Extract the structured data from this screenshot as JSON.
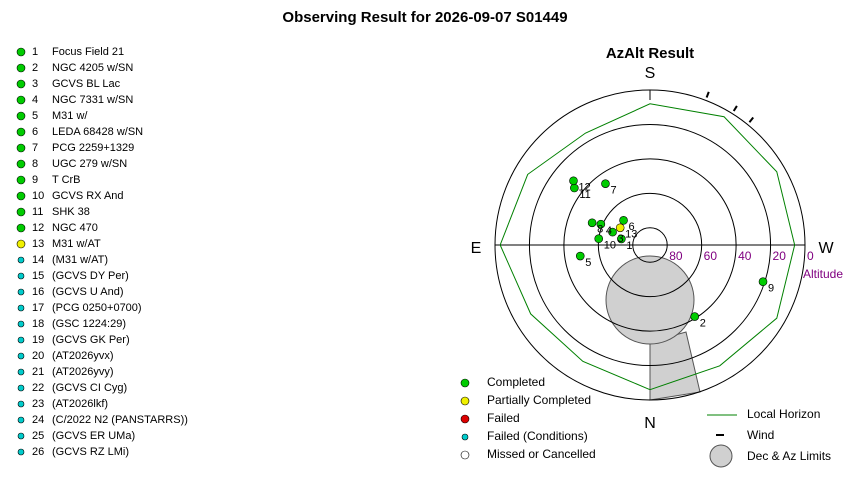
{
  "title": "Observing Result for 2026-09-07 S01449",
  "targets": [
    {
      "num": 1,
      "name": "Focus Field 21",
      "color": "#00cc00",
      "az": 102,
      "alt": 73
    },
    {
      "num": 2,
      "name": "NGC 4205 w/SN",
      "color": "#00cc00",
      "az": 328,
      "alt": 41
    },
    {
      "num": 3,
      "name": "GCVS BL Lac",
      "color": "#00cc00",
      "az": 109,
      "alt": 67
    },
    {
      "num": 4,
      "name": "NGC 7331 w/SN",
      "color": "#00cc00",
      "az": 113,
      "alt": 59
    },
    {
      "num": 5,
      "name": "M31 w/",
      "color": "#00cc00",
      "az": 81,
      "alt": 49
    },
    {
      "num": 6,
      "name": "LEDA 68428 w/SN",
      "color": "#00cc00",
      "az": 133,
      "alt": 69
    },
    {
      "num": 7,
      "name": "PCG 2259+1329",
      "color": "#00cc00",
      "az": 144,
      "alt": 46
    },
    {
      "num": 8,
      "name": "UGC 279 w/SN",
      "color": "#00cc00",
      "az": 111,
      "alt": 54
    },
    {
      "num": 9,
      "name": "T CrB",
      "color": "#00cc00",
      "az": 288,
      "alt": 21
    },
    {
      "num": 10,
      "name": "GCVS RX And",
      "color": "#00cc00",
      "az": 97,
      "alt": 60
    },
    {
      "num": 11,
      "name": "SHK 38",
      "color": "#00cc00",
      "az": 127,
      "alt": 35
    },
    {
      "num": 12,
      "name": "NGC 470",
      "color": "#00cc00",
      "az": 130,
      "alt": 32
    },
    {
      "num": 13,
      "name": "M31 w/AT",
      "color": "#f0f000",
      "az": 120,
      "alt": 70
    },
    {
      "num": 14,
      "name": "(M31 w/AT)",
      "color": "#00cccc"
    },
    {
      "num": 15,
      "name": "(GCVS DY Per)",
      "color": "#00cccc"
    },
    {
      "num": 16,
      "name": "(GCVS U And)",
      "color": "#00cccc"
    },
    {
      "num": 17,
      "name": "(PCG 0250+0700)",
      "color": "#00cccc"
    },
    {
      "num": 18,
      "name": "(GSC 1224:29)",
      "color": "#00cccc"
    },
    {
      "num": 19,
      "name": "(GCVS GK Per)",
      "color": "#00cccc"
    },
    {
      "num": 20,
      "name": "(AT2026yvx)",
      "color": "#00cccc"
    },
    {
      "num": 21,
      "name": "(AT2026yvy)",
      "color": "#00cccc"
    },
    {
      "num": 22,
      "name": "(GCVS CI Cyg)",
      "color": "#00cccc"
    },
    {
      "num": 23,
      "name": "(AT2026lkf)",
      "color": "#00cccc"
    },
    {
      "num": 24,
      "name": "(C/2022 N2 (PANSTARRS))",
      "color": "#00cccc"
    },
    {
      "num": 25,
      "name": "(GCVS ER UMa)",
      "color": "#00cccc"
    },
    {
      "num": 26,
      "name": "(GCVS RZ LMi)",
      "color": "#00cccc"
    }
  ],
  "plot": {
    "title": "AzAlt Result",
    "south": "S",
    "east": "E",
    "west": "W",
    "north": "N",
    "alt_ticks": [
      80,
      60,
      40,
      20,
      0
    ],
    "alt_label": "Altitude",
    "horizon": {
      "az": [
        0,
        30,
        60,
        90,
        120,
        150,
        180,
        210,
        240,
        270,
        300,
        330,
        360
      ],
      "alt": [
        6,
        12,
        10,
        3,
        8,
        15,
        8,
        4,
        5,
        6,
        5,
        9,
        6
      ]
    },
    "wind_az": [
      201,
      212,
      219
    ]
  },
  "legend": [
    {
      "label": "Completed",
      "color": "#00cc00"
    },
    {
      "label": "Partially Completed",
      "color": "#f0f000"
    },
    {
      "label": "Failed",
      "color": "#dd0000"
    },
    {
      "label": "Failed (Conditions)",
      "color": "#00cccc"
    },
    {
      "label": "Missed or Cancelled",
      "color": "#ffffff"
    }
  ],
  "legend2": {
    "horizon": "Local Horizon",
    "wind": "Wind",
    "limits": "Dec & Az Limits"
  }
}
